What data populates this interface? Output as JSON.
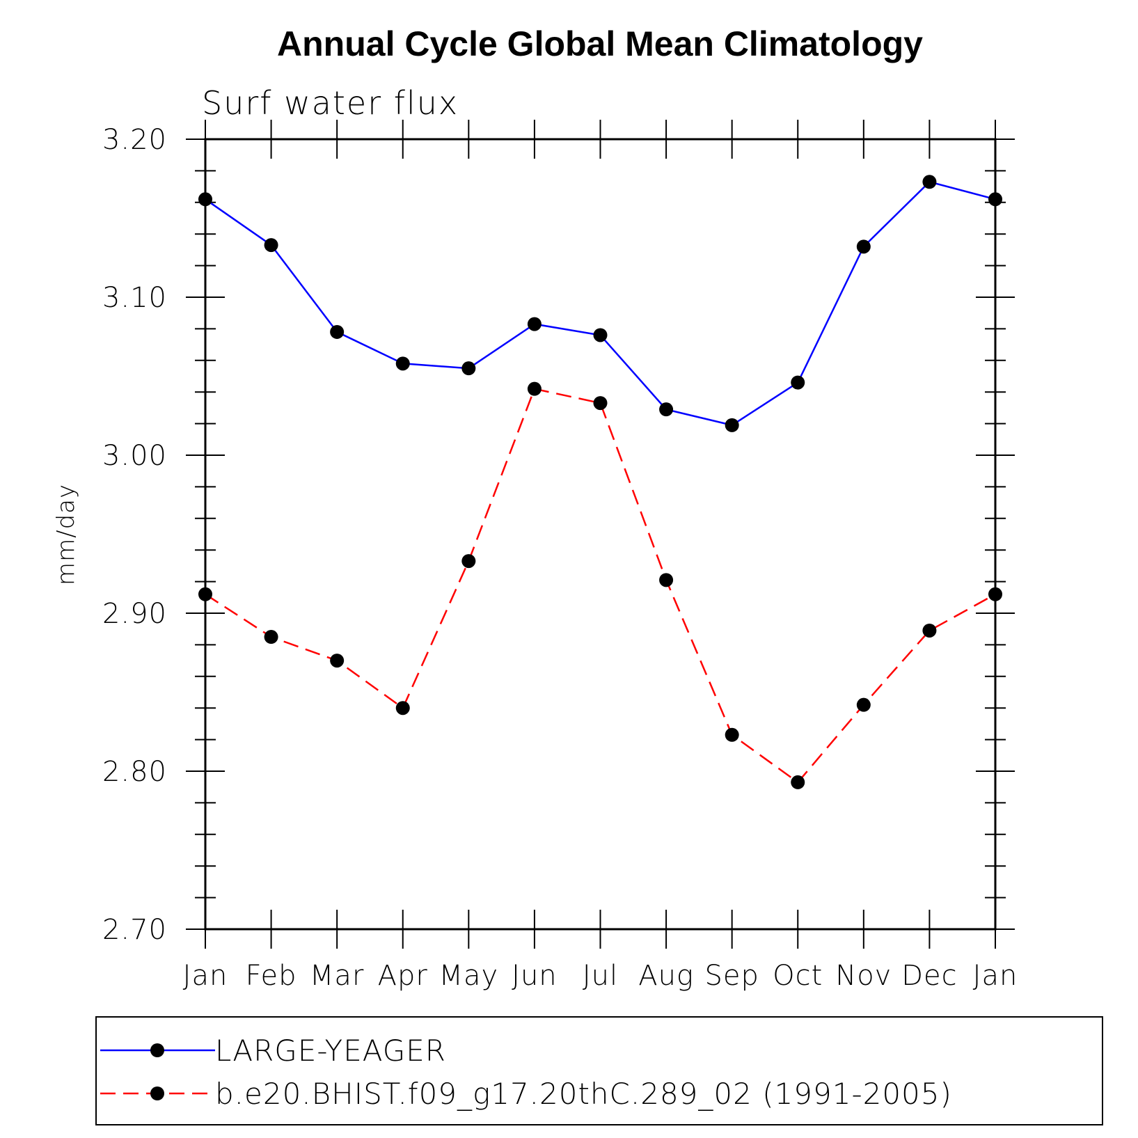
{
  "chart_data": {
    "type": "line",
    "title": "Annual Cycle Global Mean Climatology",
    "subtitle": "Surf water flux",
    "xlabel": "",
    "ylabel": "mm/day",
    "categories": [
      "Jan",
      "Feb",
      "Mar",
      "Apr",
      "May",
      "Jun",
      "Jul",
      "Aug",
      "Sep",
      "Oct",
      "Nov",
      "Dec",
      "Jan"
    ],
    "ylim": [
      2.7,
      3.2
    ],
    "yticks": [
      "2.70",
      "2.80",
      "2.90",
      "3.00",
      "3.10",
      "3.20"
    ],
    "y_minor_step": 0.02,
    "grid": false,
    "legend_position": "bottom",
    "series": [
      {
        "name": "LARGE-YEAGER",
        "color": "#0000ff",
        "dash": "solid",
        "marker": "filled-circle",
        "values": [
          3.162,
          3.133,
          3.078,
          3.058,
          3.055,
          3.083,
          3.076,
          3.029,
          3.019,
          3.046,
          3.132,
          3.173,
          3.162
        ]
      },
      {
        "name": "b.e20.BHIST.f09_g17.20thC.289_02 (1991-2005)",
        "color": "#ff0000",
        "dash": "dashed",
        "marker": "filled-circle",
        "values": [
          2.912,
          2.885,
          2.87,
          2.84,
          2.933,
          3.042,
          3.033,
          2.921,
          2.823,
          2.793,
          2.842,
          2.889,
          2.912
        ]
      }
    ]
  }
}
